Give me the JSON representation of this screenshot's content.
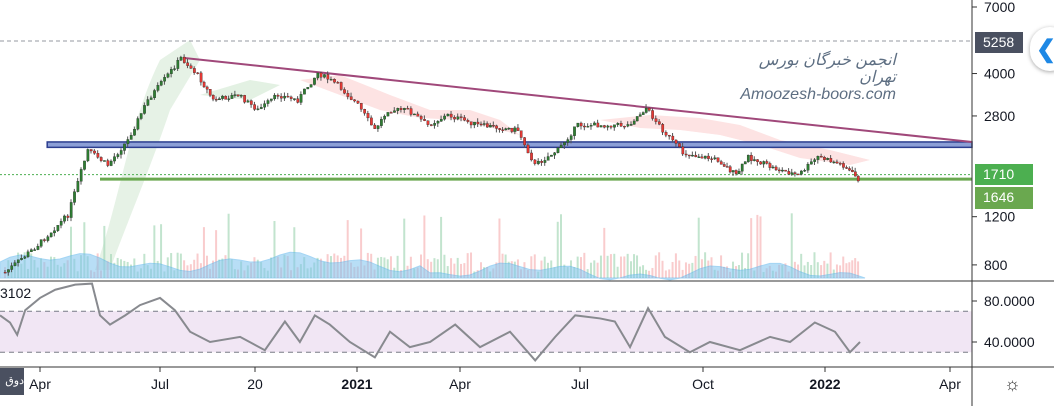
{
  "price_axis": {
    "labels": [
      "7000",
      "4000",
      "2800",
      "1200",
      "800"
    ],
    "tags": {
      "high": "5258",
      "last": "1710",
      "support": "1646"
    }
  },
  "rsi_axis": {
    "labels": [
      "80.0000",
      "40.0000"
    ],
    "indicator_value_partial": "3102"
  },
  "time_axis": {
    "labels": [
      "Apr",
      "Jul",
      "20",
      "2021",
      "Apr",
      "Jul",
      "Oct",
      "2022",
      "Apr"
    ]
  },
  "watermark": {
    "line1": "انجمن خبرگان بورس تهران",
    "line2": "Amoozesh-boors.com"
  },
  "corner_tag": "دوق",
  "colors": {
    "up": "#26a69a",
    "down": "#ef5350",
    "trendline": "#a0487a",
    "zone": "#8c9fd6",
    "support": "#6aa84f",
    "tag_green": "#4caf50",
    "tag_dark": "#4a5060",
    "rsi": "#888a8f",
    "rsi_band": "#f1e6f4"
  },
  "chart_data": {
    "type": "line",
    "title": "",
    "x_unit": "months since 2020-01",
    "time_ticks": [
      [
        3,
        "Apr"
      ],
      [
        6,
        "Jul"
      ],
      [
        9,
        "20"
      ],
      [
        12,
        "2021"
      ],
      [
        15,
        "Apr"
      ],
      [
        18,
        "Jul"
      ],
      [
        21,
        "Oct"
      ],
      [
        24,
        "2022"
      ],
      [
        27,
        "Apr"
      ]
    ],
    "price_scale": "log",
    "ylim": [
      700,
      7500
    ],
    "price": [
      [
        2.1,
        735
      ],
      [
        3,
        946
      ],
      [
        3.75,
        1216
      ],
      [
        4.25,
        2100
      ],
      [
        4.75,
        1852
      ],
      [
        5.25,
        2287
      ],
      [
        5.75,
        3200
      ],
      [
        6.32,
        3953
      ],
      [
        6.73,
        4565
      ],
      [
        7.26,
        3953
      ],
      [
        7.74,
        3200
      ],
      [
        8.53,
        3340
      ],
      [
        9.15,
        2944
      ],
      [
        9.74,
        3340
      ],
      [
        10.32,
        3200
      ],
      [
        10.91,
        4020
      ],
      [
        11.5,
        3636
      ],
      [
        12.09,
        3070
      ],
      [
        12.58,
        2488
      ],
      [
        12.96,
        2944
      ],
      [
        13.54,
        2944
      ],
      [
        14.13,
        2594
      ],
      [
        14.71,
        2820
      ],
      [
        15.5,
        2594
      ],
      [
        16.5,
        2488
      ],
      [
        16.93,
        1852
      ],
      [
        17.5,
        2103
      ],
      [
        18,
        2594
      ],
      [
        18.73,
        2594
      ],
      [
        19.22,
        2594
      ],
      [
        19.66,
        2995
      ],
      [
        20.07,
        2488
      ],
      [
        20.56,
        2051
      ],
      [
        21.42,
        1933
      ],
      [
        21.86,
        1700
      ],
      [
        22.16,
        1985
      ],
      [
        22.77,
        1808
      ],
      [
        23.39,
        1700
      ],
      [
        23.88,
        1985
      ],
      [
        24.49,
        1850
      ],
      [
        24.84,
        1646
      ]
    ],
    "rsi": {
      "ylim": [
        10,
        100
      ],
      "band": [
        30,
        70
      ],
      "values": [
        [
          2,
          66
        ],
        [
          2.25,
          59
        ],
        [
          2.43,
          47
        ],
        [
          2.63,
          71
        ],
        [
          3,
          83
        ],
        [
          3.38,
          91
        ],
        [
          3.88,
          96
        ],
        [
          4.3,
          97
        ],
        [
          4.5,
          66
        ],
        [
          4.75,
          57
        ],
        [
          5.13,
          66
        ],
        [
          5.5,
          76
        ],
        [
          6,
          83
        ],
        [
          6.47,
          71
        ],
        [
          6.95,
          50
        ],
        [
          7.58,
          40
        ],
        [
          8.53,
          45
        ],
        [
          9.29,
          32
        ],
        [
          9.88,
          60
        ],
        [
          10.32,
          40
        ],
        [
          10.76,
          66
        ],
        [
          11.2,
          57
        ],
        [
          11.79,
          40
        ],
        [
          12.52,
          25
        ],
        [
          12.96,
          50
        ],
        [
          13.54,
          35
        ],
        [
          14.13,
          40
        ],
        [
          14.86,
          57
        ],
        [
          15.5,
          35
        ],
        [
          16.25,
          50
        ],
        [
          16.88,
          22
        ],
        [
          17.38,
          45
        ],
        [
          17.88,
          66
        ],
        [
          18.49,
          63
        ],
        [
          18.85,
          60
        ],
        [
          19.22,
          35
        ],
        [
          19.66,
          73
        ],
        [
          20.07,
          45
        ],
        [
          20.68,
          30
        ],
        [
          21.17,
          40
        ],
        [
          21.91,
          32
        ],
        [
          22.65,
          45
        ],
        [
          23.14,
          40
        ],
        [
          23.75,
          59
        ],
        [
          24.24,
          50
        ],
        [
          24.6,
          30
        ],
        [
          24.84,
          40
        ]
      ]
    },
    "lines": {
      "trendline": [
        [
          6.73,
          4565
        ],
        [
          27.53,
          2248
        ]
      ],
      "resistance_zone": {
        "from": 3.18,
        "low": 2150,
        "high": 2250
      },
      "support": {
        "from": 4.5,
        "price": 1646
      },
      "high_level": 5258,
      "last_level": 1710
    }
  }
}
